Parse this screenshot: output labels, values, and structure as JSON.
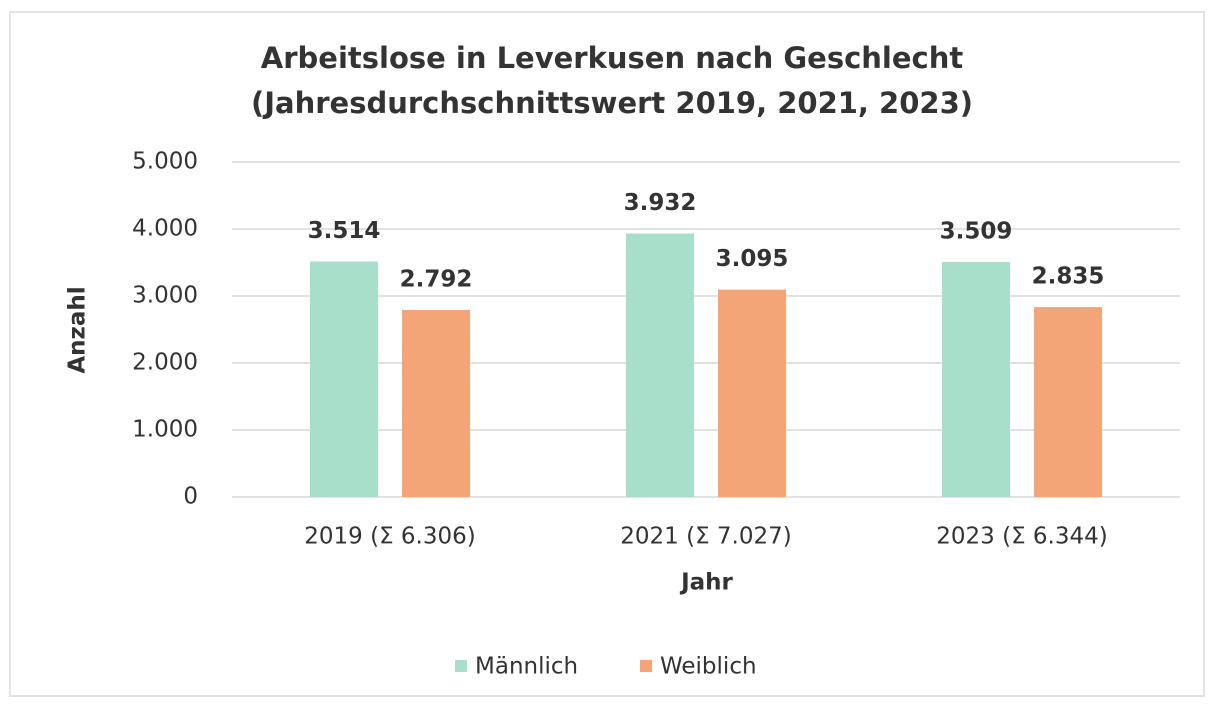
{
  "chart_data": {
    "type": "bar",
    "title": [
      "Arbeitslose in Leverkusen nach Geschlecht",
      "(Jahresdurchschnittswert  2019, 2021, 2023)"
    ],
    "categories": [
      "2019 (Σ 6.306)",
      "2021 (Σ 7.027)",
      "2023 (Σ 6.344)"
    ],
    "series": [
      {
        "name": "Männlich",
        "color": "#a8dfcb",
        "values": [
          3514,
          3932,
          3509
        ],
        "value_labels": [
          "3.514",
          "3.932",
          "3.509"
        ]
      },
      {
        "name": "Weiblich",
        "color": "#f4a578",
        "values": [
          2792,
          3095,
          2835
        ],
        "value_labels": [
          "2.792",
          "3.095",
          "2.835"
        ]
      }
    ],
    "xlabel": "Jahr",
    "ylabel": "Anzahl",
    "ylim": [
      0,
      5000
    ],
    "yticks": [
      0,
      {
        "value": 1000,
        "label": "1.000"
      },
      {
        "value": 2000,
        "label": "2.000"
      },
      {
        "value": 3000,
        "label": "3.000"
      },
      {
        "value": 4000,
        "label": "4.000"
      },
      {
        "value": 5000,
        "label": "5.000"
      }
    ],
    "grid": true,
    "legend": "bottom"
  }
}
